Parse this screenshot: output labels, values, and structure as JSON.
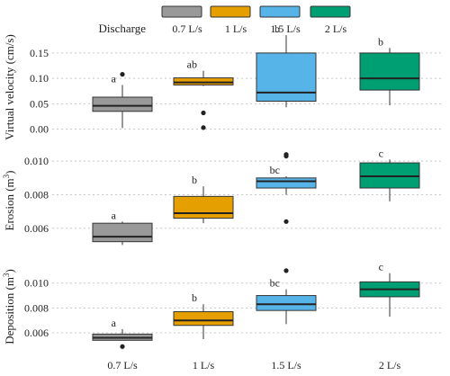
{
  "chart_data": {
    "type": "box",
    "legend": {
      "title": "Discharge",
      "placement": "top",
      "items": [
        {
          "label": "0.7 L/s",
          "color": "#999999"
        },
        {
          "label": "1 L/s",
          "color": "#E69F00"
        },
        {
          "label": "1.5 L/s",
          "color": "#56B4E9"
        },
        {
          "label": "2 L/s",
          "color": "#009E73"
        }
      ]
    },
    "categories": [
      "0.7 L/s",
      "1 L/s",
      "1.5 L/s",
      "2 L/s"
    ],
    "colors": [
      "#999999",
      "#E69F00",
      "#56B4E9",
      "#009E73"
    ],
    "grid": "horizontal dotted",
    "panels": [
      {
        "ylabel": "Virtual velocity (cm/s)",
        "ylim": [
          -0.015,
          0.18
        ],
        "yticks": [
          0.0,
          0.05,
          0.1,
          0.15
        ],
        "ytick_labels": [
          "0.00",
          "0.05",
          "0.10",
          "0.15"
        ],
        "boxes": [
          {
            "category": "0.7 L/s",
            "whisker_low": 0.002,
            "q1": 0.035,
            "median": 0.046,
            "q3": 0.063,
            "whisker_high": 0.087,
            "outliers": [
              0.108
            ],
            "letter": "a"
          },
          {
            "category": "1 L/s",
            "whisker_low": 0.085,
            "q1": 0.087,
            "median": 0.092,
            "q3": 0.101,
            "whisker_high": 0.115,
            "outliers": [
              0.032,
              0.003
            ],
            "letter": "ab"
          },
          {
            "category": "1.5 L/s",
            "whisker_low": 0.043,
            "q1": 0.055,
            "median": 0.072,
            "q3": 0.15,
            "whisker_high": 0.185,
            "outliers": [],
            "letter": "b"
          },
          {
            "category": "2 L/s",
            "whisker_low": 0.047,
            "q1": 0.077,
            "median": 0.1,
            "q3": 0.15,
            "whisker_high": 0.16,
            "outliers": [],
            "letter": "b"
          }
        ]
      },
      {
        "ylabel": "Erosion (m",
        "ylabel_sup": "3",
        "ylabel_end": ")",
        "ylim": [
          0.0047,
          0.0106
        ],
        "yticks": [
          0.006,
          0.008,
          0.01
        ],
        "ytick_labels": [
          "0.006",
          "0.008",
          "0.010"
        ],
        "boxes": [
          {
            "category": "0.7 L/s",
            "whisker_low": 0.005,
            "q1": 0.0052,
            "median": 0.0055,
            "q3": 0.0063,
            "whisker_high": 0.0064,
            "outliers": [],
            "letter": "a"
          },
          {
            "category": "1 L/s",
            "whisker_low": 0.0063,
            "q1": 0.0066,
            "median": 0.0069,
            "q3": 0.0079,
            "whisker_high": 0.0085,
            "outliers": [],
            "letter": "b"
          },
          {
            "category": "1.5 L/s",
            "whisker_low": 0.008,
            "q1": 0.0084,
            "median": 0.0088,
            "q3": 0.009,
            "whisker_high": 0.0091,
            "outliers": [
              0.0104,
              0.0103,
              0.0064
            ],
            "letter": "bc"
          },
          {
            "category": "2 L/s",
            "whisker_low": 0.0076,
            "q1": 0.0084,
            "median": 0.0091,
            "q3": 0.0099,
            "whisker_high": 0.0101,
            "outliers": [],
            "letter": "c"
          }
        ]
      },
      {
        "ylabel": "Deposition (m",
        "ylabel_sup": "3",
        "ylabel_end": ")",
        "ylim": [
          0.0047,
          0.0115
        ],
        "yticks": [
          0.006,
          0.008,
          0.01
        ],
        "ytick_labels": [
          "0.006",
          "0.008",
          "0.010"
        ],
        "boxes": [
          {
            "category": "0.7 L/s",
            "whisker_low": 0.0054,
            "q1": 0.0054,
            "median": 0.0056,
            "q3": 0.0059,
            "whisker_high": 0.0063,
            "outliers": [
              0.0049
            ],
            "letter": "a"
          },
          {
            "category": "1 L/s",
            "whisker_low": 0.0055,
            "q1": 0.0066,
            "median": 0.007,
            "q3": 0.0077,
            "whisker_high": 0.0083,
            "outliers": [],
            "letter": "b"
          },
          {
            "category": "1.5 L/s",
            "whisker_low": 0.0067,
            "q1": 0.0078,
            "median": 0.0083,
            "q3": 0.009,
            "whisker_high": 0.0095,
            "outliers": [
              0.011
            ],
            "letter": "bc"
          },
          {
            "category": "2 L/s",
            "whisker_low": 0.0073,
            "q1": 0.0089,
            "median": 0.0095,
            "q3": 0.0101,
            "whisker_high": 0.0108,
            "outliers": [],
            "letter": "c"
          }
        ]
      }
    ]
  }
}
